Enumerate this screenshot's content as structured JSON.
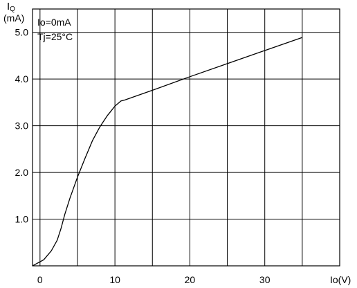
{
  "chart_data": {
    "type": "line",
    "title": "",
    "ylabel_main": "I",
    "ylabel_sub": "Q",
    "yunit": "(mA)",
    "xlabel": "Io(V)",
    "xlim": [
      -1,
      40
    ],
    "ylim": [
      0,
      5.5
    ],
    "grid": true,
    "x_ticks": [
      0,
      10,
      20,
      30
    ],
    "x_tick_labels": [
      "0",
      "10",
      "20",
      "30"
    ],
    "y_ticks": [
      1.0,
      2.0,
      3.0,
      4.0,
      5.0
    ],
    "y_tick_labels": [
      "1.0",
      "2.0",
      "3.0",
      "4.0",
      "5.0"
    ],
    "annotations": [
      "Io=0mA",
      "Tj=25°C"
    ],
    "series": [
      {
        "x": [
          -1,
          0.5,
          1.5,
          2.3,
          2.8,
          3.3,
          4.0,
          5.0,
          6.0,
          7.0,
          8.0,
          9.0,
          10.0,
          10.8,
          11.3,
          15,
          20,
          25,
          30,
          35
        ],
        "y": [
          0,
          0.13,
          0.32,
          0.55,
          0.8,
          1.1,
          1.45,
          1.9,
          2.3,
          2.68,
          2.98,
          3.22,
          3.42,
          3.53,
          3.55,
          3.76,
          4.05,
          4.33,
          4.61,
          4.89
        ]
      }
    ]
  }
}
